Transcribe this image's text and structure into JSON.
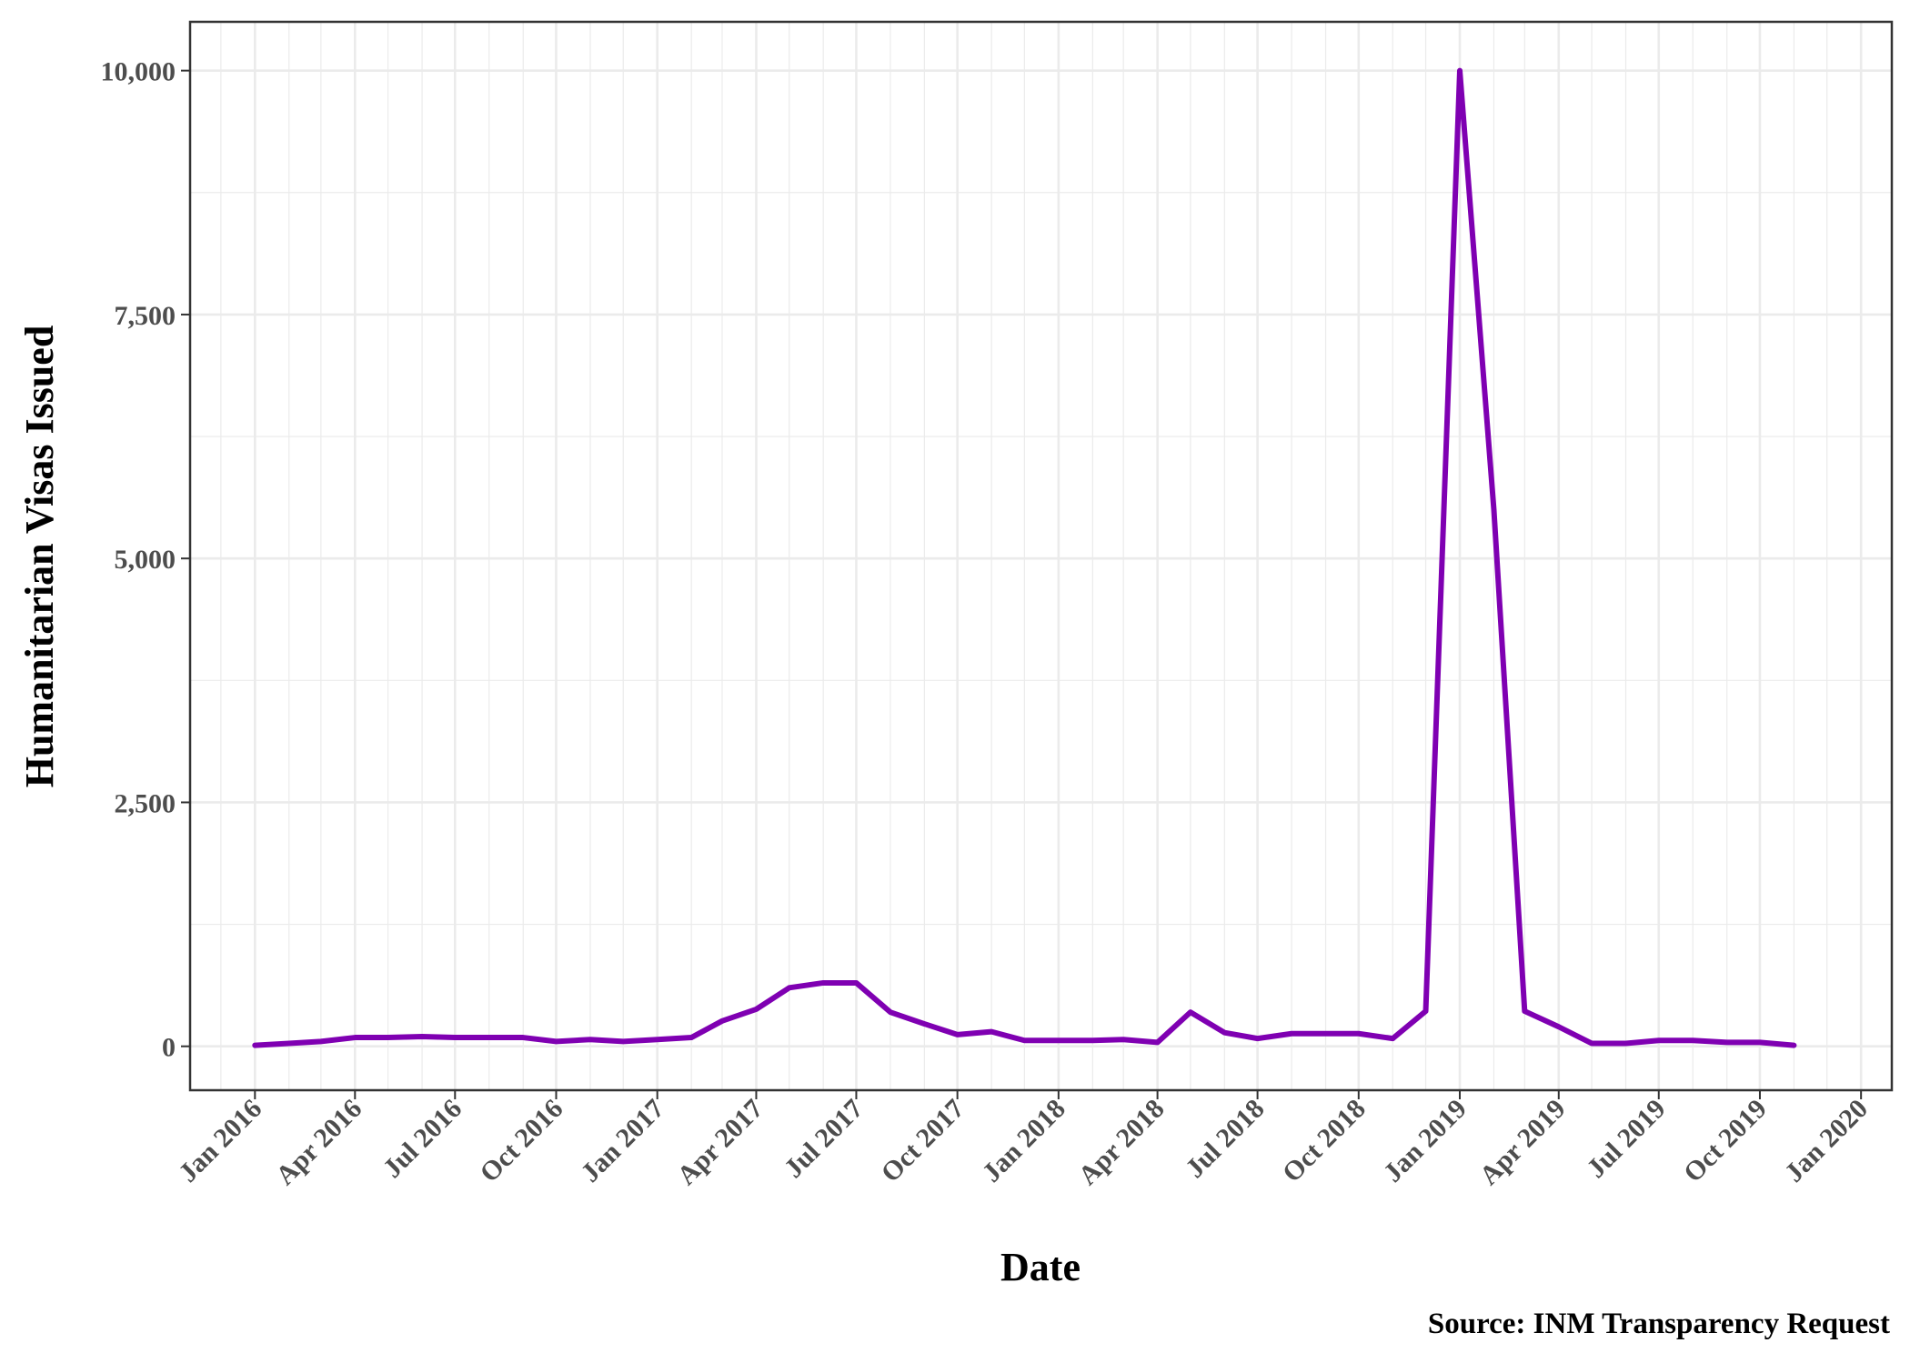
{
  "chart_data": {
    "type": "line",
    "title": "",
    "xlabel": "Date",
    "ylabel": "Humanitarian Visas Issued",
    "caption": "Source: INM Transparency Request",
    "line_color": "#7f00b2",
    "grid": true,
    "xlim": [
      "2015-11-03",
      "2020-01-29"
    ],
    "ylim": [
      -450,
      10500
    ],
    "x_ticks": [
      {
        "date": "2016-01-01",
        "label": "Jan 2016"
      },
      {
        "date": "2016-04-01",
        "label": "Apr 2016"
      },
      {
        "date": "2016-07-01",
        "label": "Jul 2016"
      },
      {
        "date": "2016-10-01",
        "label": "Oct 2016"
      },
      {
        "date": "2017-01-01",
        "label": "Jan 2017"
      },
      {
        "date": "2017-04-01",
        "label": "Apr 2017"
      },
      {
        "date": "2017-07-01",
        "label": "Jul 2017"
      },
      {
        "date": "2017-10-01",
        "label": "Oct 2017"
      },
      {
        "date": "2018-01-01",
        "label": "Jan 2018"
      },
      {
        "date": "2018-04-01",
        "label": "Apr 2018"
      },
      {
        "date": "2018-07-01",
        "label": "Jul 2018"
      },
      {
        "date": "2018-10-01",
        "label": "Oct 2018"
      },
      {
        "date": "2019-01-01",
        "label": "Jan 2019"
      },
      {
        "date": "2019-04-01",
        "label": "Apr 2019"
      },
      {
        "date": "2019-07-01",
        "label": "Jul 2019"
      },
      {
        "date": "2019-10-01",
        "label": "Oct 2019"
      },
      {
        "date": "2020-01-01",
        "label": "Jan 2020"
      }
    ],
    "y_ticks": [
      {
        "value": 0,
        "label": "0"
      },
      {
        "value": 2500,
        "label": "2,500"
      },
      {
        "value": 5000,
        "label": "5,000"
      },
      {
        "value": 7500,
        "label": "7,500"
      },
      {
        "value": 10000,
        "label": "10,000"
      }
    ],
    "series": [
      {
        "x": [
          "2016-01-01",
          "2016-02-01",
          "2016-03-01",
          "2016-04-01",
          "2016-05-01",
          "2016-06-01",
          "2016-07-01",
          "2016-08-01",
          "2016-09-01",
          "2016-10-01",
          "2016-11-01",
          "2016-12-01",
          "2017-01-01",
          "2017-02-01",
          "2017-03-01",
          "2017-04-01",
          "2017-05-01",
          "2017-06-01",
          "2017-07-01",
          "2017-08-01",
          "2017-09-01",
          "2017-10-01",
          "2017-11-01",
          "2017-12-01",
          "2018-01-01",
          "2018-02-01",
          "2018-03-01",
          "2018-04-01",
          "2018-05-01",
          "2018-06-01",
          "2018-07-01",
          "2018-08-01",
          "2018-09-01",
          "2018-10-01",
          "2018-11-01",
          "2018-12-01",
          "2019-01-01",
          "2019-02-01",
          "2019-03-01",
          "2019-04-01",
          "2019-05-01",
          "2019-06-01",
          "2019-07-01",
          "2019-08-01",
          "2019-09-01",
          "2019-10-01",
          "2019-11-01"
        ],
        "y": [
          10,
          30,
          50,
          90,
          90,
          100,
          90,
          90,
          90,
          50,
          70,
          50,
          70,
          90,
          260,
          380,
          600,
          650,
          650,
          350,
          230,
          120,
          150,
          60,
          60,
          60,
          70,
          40,
          350,
          140,
          80,
          130,
          130,
          130,
          80,
          360,
          10000,
          5500,
          360,
          200,
          30,
          30,
          60,
          60,
          40,
          40,
          10
        ]
      }
    ]
  }
}
